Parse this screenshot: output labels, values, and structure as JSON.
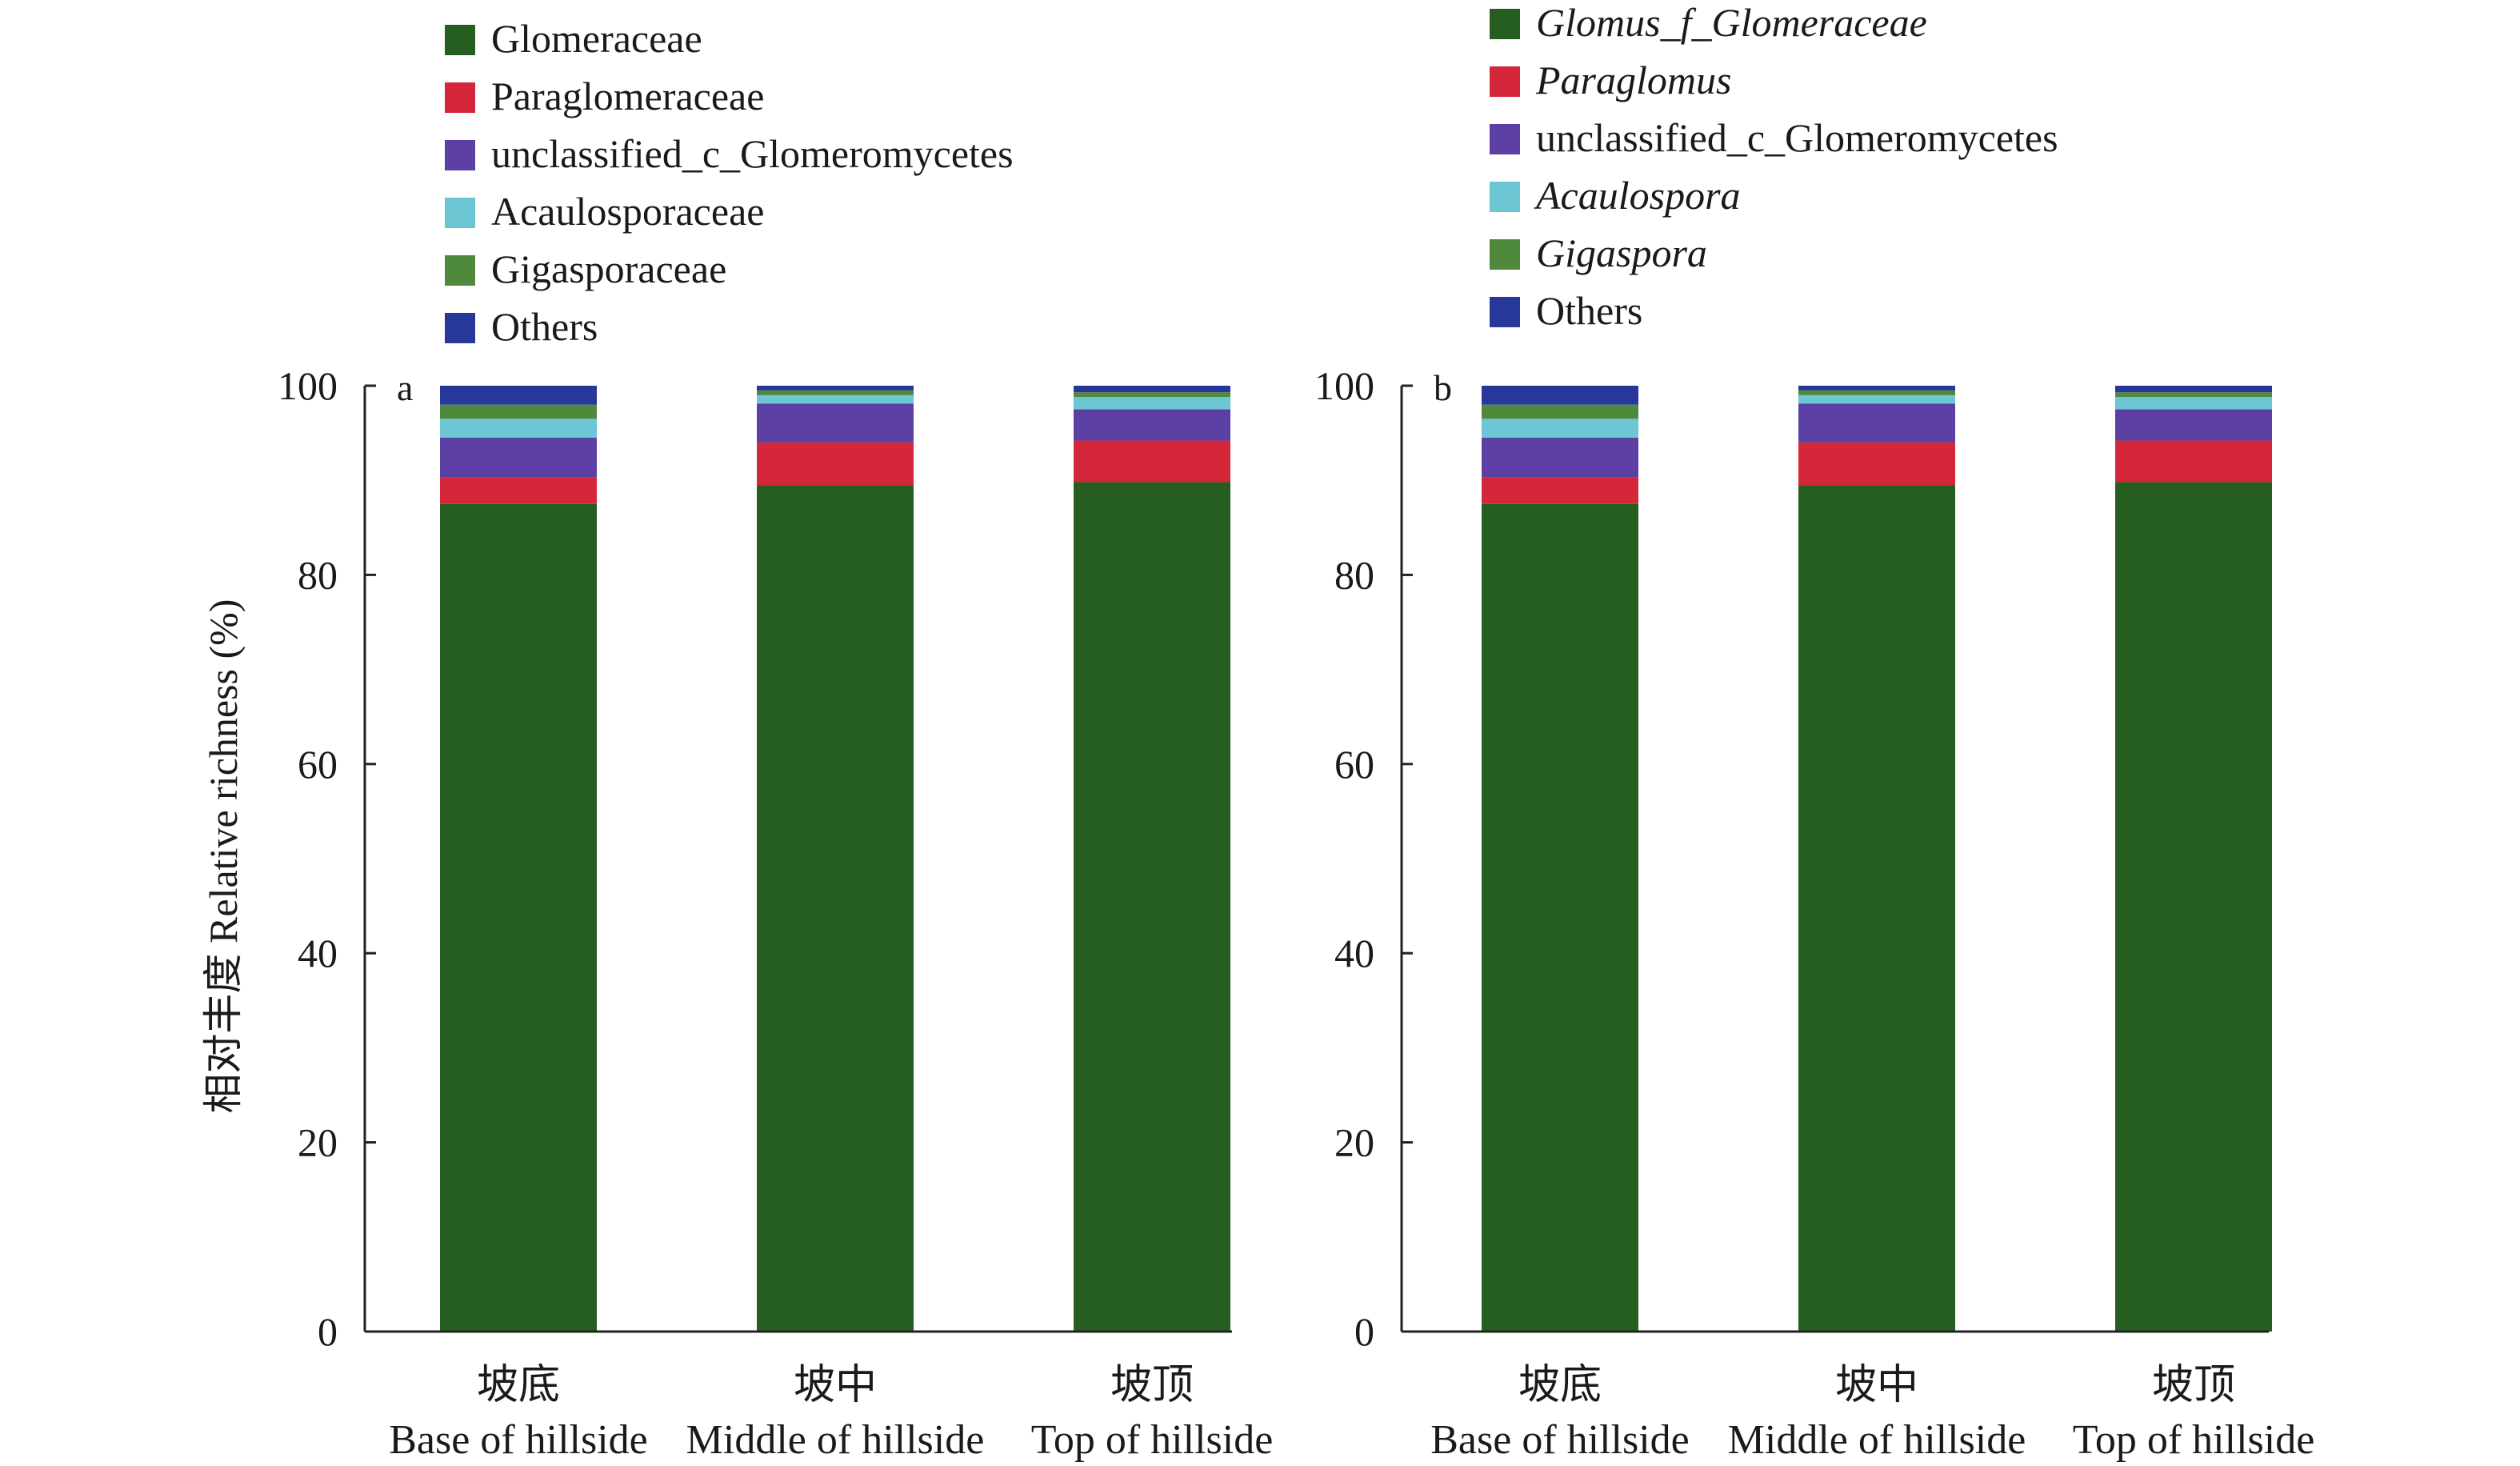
{
  "figure": {
    "ylabel": "相对丰度 Relative richness (%)"
  },
  "chart_data": [
    {
      "type": "bar",
      "stacked": true,
      "panel_label": "a",
      "categories": [
        "坡底\nBase of hillside",
        "坡中\nMiddle of hillside",
        "坡顶\nTop of hillside"
      ],
      "category_lines": [
        [
          "坡底",
          "Base of hillside"
        ],
        [
          "坡中",
          "Middle of hillside"
        ],
        [
          "坡顶",
          "Top of hillside"
        ]
      ],
      "ylim": [
        0,
        100
      ],
      "yticks": [
        0,
        20,
        40,
        60,
        80,
        100
      ],
      "ylabel": "相对丰度 Relative richness (%)",
      "legend_position": "top-left",
      "series": [
        {
          "name": "Glomeraceae",
          "italic": false,
          "color": "#265e22",
          "values": [
            87.5,
            89.5,
            89.8
          ]
        },
        {
          "name": "Paraglomeraceae",
          "italic": false,
          "color": "#d4273a",
          "values": [
            2.8,
            4.5,
            4.4
          ]
        },
        {
          "name": "unclassified_c_Glomeromycetes",
          "italic": false,
          "color": "#5b3fa3",
          "values": [
            4.2,
            4.1,
            3.3
          ]
        },
        {
          "name": "Acaulosporaceae",
          "italic": false,
          "color": "#6dc6d3",
          "values": [
            2.0,
            0.9,
            1.3
          ]
        },
        {
          "name": "Gigasporaceae",
          "italic": false,
          "color": "#4f8a3c",
          "values": [
            1.5,
            0.5,
            0.5
          ]
        },
        {
          "name": "Others",
          "italic": false,
          "color": "#27379a",
          "values": [
            2.0,
            0.5,
            0.7
          ]
        }
      ]
    },
    {
      "type": "bar",
      "stacked": true,
      "panel_label": "b",
      "categories": [
        "坡底\nBase of hillside",
        "坡中\nMiddle of hillside",
        "坡顶\nTop of hillside"
      ],
      "category_lines": [
        [
          "坡底",
          "Base of hillside"
        ],
        [
          "坡中",
          "Middle of hillside"
        ],
        [
          "坡顶",
          "Top of hillside"
        ]
      ],
      "ylim": [
        0,
        100
      ],
      "yticks": [
        0,
        20,
        40,
        60,
        80,
        100
      ],
      "legend_position": "top-left",
      "series": [
        {
          "name": "Glomus_f_Glomeraceae",
          "italic": true,
          "color": "#265e22",
          "values": [
            87.5,
            89.5,
            89.8
          ]
        },
        {
          "name": "Paraglomus",
          "italic": true,
          "color": "#d4273a",
          "values": [
            2.8,
            4.5,
            4.4
          ]
        },
        {
          "name": "unclassified_c_Glomeromycetes",
          "italic": false,
          "color": "#5b3fa3",
          "values": [
            4.2,
            4.1,
            3.3
          ]
        },
        {
          "name": "Acaulospora",
          "italic": true,
          "color": "#6dc6d3",
          "values": [
            2.0,
            0.9,
            1.3
          ]
        },
        {
          "name": "Gigaspora",
          "italic": true,
          "color": "#4f8a3c",
          "values": [
            1.5,
            0.5,
            0.5
          ]
        },
        {
          "name": "Others",
          "italic": false,
          "color": "#27379a",
          "values": [
            2.0,
            0.5,
            0.7
          ]
        }
      ]
    }
  ]
}
